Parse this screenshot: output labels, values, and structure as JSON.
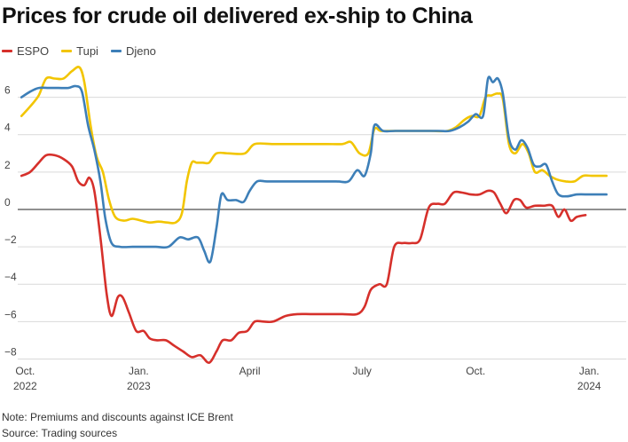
{
  "title": "Prices for crude oil delivered ex-ship to China",
  "note": "Note: Premiums and discounts against ICE Brent",
  "source": "Source: Trading sources",
  "chart_data": {
    "type": "line",
    "ylim": [
      -8.5,
      7.5
    ],
    "yticks": [
      6,
      4,
      2,
      0,
      -2,
      -4,
      -6,
      -8
    ],
    "ytick_labels": [
      "6",
      "4",
      "2",
      "0",
      "−2",
      "−4",
      "−6",
      "−8"
    ],
    "xlim": [
      "2022-09-25",
      "2024-01-31"
    ],
    "xticks": [
      {
        "date": "2022-10-01",
        "line1": "Oct.",
        "line2": "2022"
      },
      {
        "date": "2023-01-01",
        "line1": "Jan.",
        "line2": "2023"
      },
      {
        "date": "2023-04-01",
        "line1": "April",
        "line2": ""
      },
      {
        "date": "2023-07-01",
        "line1": "July",
        "line2": ""
      },
      {
        "date": "2023-10-01",
        "line1": "Oct.",
        "line2": ""
      },
      {
        "date": "2024-01-01",
        "line1": "Jan.",
        "line2": "2024"
      }
    ],
    "grid": true,
    "legend_position": "top-left",
    "series": [
      {
        "name": "Tupi",
        "color": "#f2c500",
        "points": [
          [
            "2022-09-28",
            5.0
          ],
          [
            "2022-10-05",
            5.5
          ],
          [
            "2022-10-12",
            6.1
          ],
          [
            "2022-10-18",
            7.0
          ],
          [
            "2022-10-25",
            7.0
          ],
          [
            "2022-11-01",
            7.0
          ],
          [
            "2022-11-08",
            7.4
          ],
          [
            "2022-11-14",
            7.6
          ],
          [
            "2022-11-18",
            6.8
          ],
          [
            "2022-11-23",
            4.5
          ],
          [
            "2022-11-28",
            2.8
          ],
          [
            "2022-12-03",
            2.0
          ],
          [
            "2022-12-08",
            0.5
          ],
          [
            "2022-12-13",
            -0.4
          ],
          [
            "2022-12-20",
            -0.6
          ],
          [
            "2022-12-27",
            -0.5
          ],
          [
            "2023-01-03",
            -0.6
          ],
          [
            "2023-01-10",
            -0.7
          ],
          [
            "2023-01-17",
            -0.65
          ],
          [
            "2023-01-24",
            -0.7
          ],
          [
            "2023-01-31",
            -0.7
          ],
          [
            "2023-02-05",
            -0.2
          ],
          [
            "2023-02-09",
            1.5
          ],
          [
            "2023-02-13",
            2.5
          ],
          [
            "2023-02-17",
            2.5
          ],
          [
            "2023-02-22",
            2.5
          ],
          [
            "2023-02-27",
            2.5
          ],
          [
            "2023-03-05",
            3.0
          ],
          [
            "2023-03-15",
            3.0
          ],
          [
            "2023-03-28",
            3.0
          ],
          [
            "2023-04-05",
            3.5
          ],
          [
            "2023-04-20",
            3.5
          ],
          [
            "2023-05-10",
            3.5
          ],
          [
            "2023-06-01",
            3.5
          ],
          [
            "2023-06-15",
            3.5
          ],
          [
            "2023-06-22",
            3.6
          ],
          [
            "2023-06-29",
            3.0
          ],
          [
            "2023-07-06",
            3.0
          ],
          [
            "2023-07-11",
            4.3
          ],
          [
            "2023-07-16",
            4.2
          ],
          [
            "2023-07-25",
            4.2
          ],
          [
            "2023-08-10",
            4.2
          ],
          [
            "2023-08-25",
            4.2
          ],
          [
            "2023-09-08",
            4.2
          ],
          [
            "2023-09-15",
            4.4
          ],
          [
            "2023-09-22",
            4.8
          ],
          [
            "2023-09-28",
            5.0
          ],
          [
            "2023-10-04",
            5.0
          ],
          [
            "2023-10-09",
            6.0
          ],
          [
            "2023-10-14",
            6.1
          ],
          [
            "2023-10-19",
            6.2
          ],
          [
            "2023-10-23",
            5.9
          ],
          [
            "2023-10-28",
            3.5
          ],
          [
            "2023-11-02",
            3.0
          ],
          [
            "2023-11-08",
            3.5
          ],
          [
            "2023-11-13",
            3.0
          ],
          [
            "2023-11-18",
            2.0
          ],
          [
            "2023-11-24",
            2.1
          ],
          [
            "2023-11-30",
            1.8
          ],
          [
            "2023-12-06",
            1.6
          ],
          [
            "2023-12-13",
            1.5
          ],
          [
            "2023-12-20",
            1.5
          ],
          [
            "2023-12-27",
            1.8
          ],
          [
            "2024-01-03",
            1.8
          ],
          [
            "2024-01-10",
            1.8
          ],
          [
            "2024-01-15",
            1.8
          ]
        ]
      },
      {
        "name": "Djeno",
        "color": "#3d7fb8",
        "points": [
          [
            "2022-09-28",
            6.0
          ],
          [
            "2022-10-05",
            6.3
          ],
          [
            "2022-10-12",
            6.5
          ],
          [
            "2022-10-20",
            6.5
          ],
          [
            "2022-10-28",
            6.5
          ],
          [
            "2022-11-05",
            6.5
          ],
          [
            "2022-11-11",
            6.6
          ],
          [
            "2022-11-16",
            6.3
          ],
          [
            "2022-11-21",
            4.5
          ],
          [
            "2022-11-26",
            3.2
          ],
          [
            "2022-12-01",
            1.5
          ],
          [
            "2022-12-05",
            -0.5
          ],
          [
            "2022-12-10",
            -1.8
          ],
          [
            "2022-12-17",
            -2.0
          ],
          [
            "2022-12-27",
            -2.0
          ],
          [
            "2023-01-06",
            -2.0
          ],
          [
            "2023-01-15",
            -2.0
          ],
          [
            "2023-01-25",
            -2.0
          ],
          [
            "2023-02-03",
            -1.5
          ],
          [
            "2023-02-10",
            -1.6
          ],
          [
            "2023-02-18",
            -1.5
          ],
          [
            "2023-02-23",
            -2.2
          ],
          [
            "2023-02-28",
            -2.8
          ],
          [
            "2023-03-05",
            -1.0
          ],
          [
            "2023-03-09",
            0.8
          ],
          [
            "2023-03-14",
            0.5
          ],
          [
            "2023-03-21",
            0.5
          ],
          [
            "2023-03-27",
            0.4
          ],
          [
            "2023-04-01",
            1.0
          ],
          [
            "2023-04-07",
            1.5
          ],
          [
            "2023-04-15",
            1.5
          ],
          [
            "2023-05-01",
            1.5
          ],
          [
            "2023-05-20",
            1.5
          ],
          [
            "2023-06-10",
            1.5
          ],
          [
            "2023-06-20",
            1.5
          ],
          [
            "2023-06-27",
            2.1
          ],
          [
            "2023-07-03",
            1.8
          ],
          [
            "2023-07-08",
            3.0
          ],
          [
            "2023-07-11",
            4.5
          ],
          [
            "2023-07-18",
            4.2
          ],
          [
            "2023-07-28",
            4.2
          ],
          [
            "2023-08-15",
            4.2
          ],
          [
            "2023-09-01",
            4.2
          ],
          [
            "2023-09-10",
            4.2
          ],
          [
            "2023-09-18",
            4.4
          ],
          [
            "2023-09-25",
            4.7
          ],
          [
            "2023-10-01",
            5.1
          ],
          [
            "2023-10-07",
            5.0
          ],
          [
            "2023-10-11",
            7.0
          ],
          [
            "2023-10-15",
            6.8
          ],
          [
            "2023-10-19",
            7.0
          ],
          [
            "2023-10-23",
            6.2
          ],
          [
            "2023-10-28",
            3.8
          ],
          [
            "2023-11-02",
            3.2
          ],
          [
            "2023-11-07",
            3.7
          ],
          [
            "2023-11-12",
            3.3
          ],
          [
            "2023-11-17",
            2.4
          ],
          [
            "2023-11-22",
            2.3
          ],
          [
            "2023-11-27",
            2.4
          ],
          [
            "2023-12-02",
            1.5
          ],
          [
            "2023-12-07",
            0.8
          ],
          [
            "2023-12-14",
            0.7
          ],
          [
            "2023-12-22",
            0.8
          ],
          [
            "2024-01-01",
            0.8
          ],
          [
            "2024-01-10",
            0.8
          ],
          [
            "2024-01-15",
            0.8
          ]
        ]
      },
      {
        "name": "ESPO",
        "color": "#d6302b",
        "points": [
          [
            "2022-09-28",
            1.8
          ],
          [
            "2022-10-05",
            2.0
          ],
          [
            "2022-10-12",
            2.5
          ],
          [
            "2022-10-18",
            2.9
          ],
          [
            "2022-10-25",
            2.9
          ],
          [
            "2022-11-01",
            2.7
          ],
          [
            "2022-11-08",
            2.3
          ],
          [
            "2022-11-13",
            1.5
          ],
          [
            "2022-11-18",
            1.3
          ],
          [
            "2022-11-22",
            1.7
          ],
          [
            "2022-11-26",
            1.0
          ],
          [
            "2022-12-01",
            -1.5
          ],
          [
            "2022-12-06",
            -4.5
          ],
          [
            "2022-12-10",
            -5.7
          ],
          [
            "2022-12-15",
            -4.7
          ],
          [
            "2022-12-19",
            -4.7
          ],
          [
            "2022-12-24",
            -5.5
          ],
          [
            "2022-12-30",
            -6.5
          ],
          [
            "2023-01-05",
            -6.5
          ],
          [
            "2023-01-10",
            -6.9
          ],
          [
            "2023-01-16",
            -7.0
          ],
          [
            "2023-01-23",
            -7.0
          ],
          [
            "2023-01-30",
            -7.3
          ],
          [
            "2023-02-06",
            -7.6
          ],
          [
            "2023-02-13",
            -7.9
          ],
          [
            "2023-02-20",
            -7.8
          ],
          [
            "2023-02-27",
            -8.2
          ],
          [
            "2023-03-05",
            -7.6
          ],
          [
            "2023-03-10",
            -7.0
          ],
          [
            "2023-03-17",
            -7.0
          ],
          [
            "2023-03-23",
            -6.6
          ],
          [
            "2023-03-30",
            -6.5
          ],
          [
            "2023-04-05",
            -6.0
          ],
          [
            "2023-04-12",
            -6.0
          ],
          [
            "2023-04-20",
            -6.0
          ],
          [
            "2023-04-30",
            -5.7
          ],
          [
            "2023-05-10",
            -5.6
          ],
          [
            "2023-05-20",
            -5.6
          ],
          [
            "2023-06-01",
            -5.6
          ],
          [
            "2023-06-15",
            -5.6
          ],
          [
            "2023-06-27",
            -5.6
          ],
          [
            "2023-07-03",
            -5.2
          ],
          [
            "2023-07-08",
            -4.3
          ],
          [
            "2023-07-15",
            -4.0
          ],
          [
            "2023-07-21",
            -4.0
          ],
          [
            "2023-07-27",
            -2.0
          ],
          [
            "2023-08-03",
            -1.8
          ],
          [
            "2023-08-10",
            -1.8
          ],
          [
            "2023-08-17",
            -1.6
          ],
          [
            "2023-08-24",
            0.1
          ],
          [
            "2023-08-31",
            0.3
          ],
          [
            "2023-09-06",
            0.3
          ],
          [
            "2023-09-13",
            0.9
          ],
          [
            "2023-09-20",
            0.9
          ],
          [
            "2023-09-27",
            0.8
          ],
          [
            "2023-10-04",
            0.8
          ],
          [
            "2023-10-11",
            1.0
          ],
          [
            "2023-10-16",
            0.9
          ],
          [
            "2023-10-21",
            0.3
          ],
          [
            "2023-10-26",
            -0.2
          ],
          [
            "2023-11-01",
            0.5
          ],
          [
            "2023-11-06",
            0.5
          ],
          [
            "2023-11-11",
            0.1
          ],
          [
            "2023-11-18",
            0.2
          ],
          [
            "2023-11-25",
            0.2
          ],
          [
            "2023-12-02",
            0.2
          ],
          [
            "2023-12-07",
            -0.4
          ],
          [
            "2023-12-12",
            0.0
          ],
          [
            "2023-12-17",
            -0.6
          ],
          [
            "2023-12-22",
            -0.4
          ],
          [
            "2023-12-29",
            -0.3
          ]
        ]
      }
    ],
    "legend_order": [
      "ESPO",
      "Tupi",
      "Djeno"
    ]
  }
}
